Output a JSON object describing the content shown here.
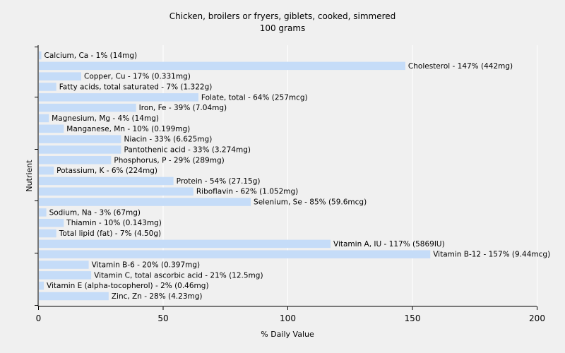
{
  "chart_data": {
    "type": "bar",
    "orientation": "horizontal",
    "title": "Chicken, broilers or fryers, giblets, cooked, simmered",
    "subtitle": "100 grams",
    "xlabel": "% Daily Value",
    "ylabel": "Nutrient",
    "xlim": [
      0,
      200
    ],
    "xticks": [
      "0",
      "50",
      "100",
      "150",
      "200"
    ],
    "grid": true,
    "legend": "none",
    "bar_color": "#c5dcf8",
    "categories": [
      "Calcium, Ca",
      "Cholesterol",
      "Copper, Cu",
      "Fatty acids, total saturated",
      "Folate, total",
      "Iron, Fe",
      "Magnesium, Mg",
      "Manganese, Mn",
      "Niacin",
      "Pantothenic acid",
      "Phosphorus, P",
      "Potassium, K",
      "Protein",
      "Riboflavin",
      "Selenium, Se",
      "Sodium, Na",
      "Thiamin",
      "Total lipid (fat)",
      "Vitamin A, IU",
      "Vitamin B-12",
      "Vitamin B-6",
      "Vitamin C, total ascorbic acid",
      "Vitamin E (alpha-tocopherol)",
      "Zinc, Zn"
    ],
    "values": [
      1,
      147,
      17,
      7,
      64,
      39,
      4,
      10,
      33,
      33,
      29,
      6,
      54,
      62,
      85,
      3,
      10,
      7,
      117,
      157,
      20,
      21,
      2,
      28
    ],
    "labels": [
      "Calcium, Ca - 1% (14mg)",
      "Cholesterol - 147% (442mg)",
      "Copper, Cu - 17% (0.331mg)",
      "Fatty acids, total saturated - 7% (1.322g)",
      "Folate, total - 64% (257mcg)",
      "Iron, Fe - 39% (7.04mg)",
      "Magnesium, Mg - 4% (14mg)",
      "Manganese, Mn - 10% (0.199mg)",
      "Niacin - 33% (6.625mg)",
      "Pantothenic acid - 33% (3.274mg)",
      "Phosphorus, P - 29% (289mg)",
      "Potassium, K - 6% (224mg)",
      "Protein - 54% (27.15g)",
      "Riboflavin - 62% (1.052mg)",
      "Selenium, Se - 85% (59.6mcg)",
      "Sodium, Na - 3% (67mg)",
      "Thiamin - 10% (0.143mg)",
      "Total lipid (fat) - 7% (4.50g)",
      "Vitamin A, IU - 117% (5869IU)",
      "Vitamin B-12 - 157% (9.44mcg)",
      "Vitamin B-6 - 20% (0.397mg)",
      "Vitamin C, total ascorbic acid - 21% (12.5mg)",
      "Vitamin E (alpha-tocopherol) - 2% (0.46mg)",
      "Zinc, Zn - 28% (4.23mg)"
    ]
  }
}
